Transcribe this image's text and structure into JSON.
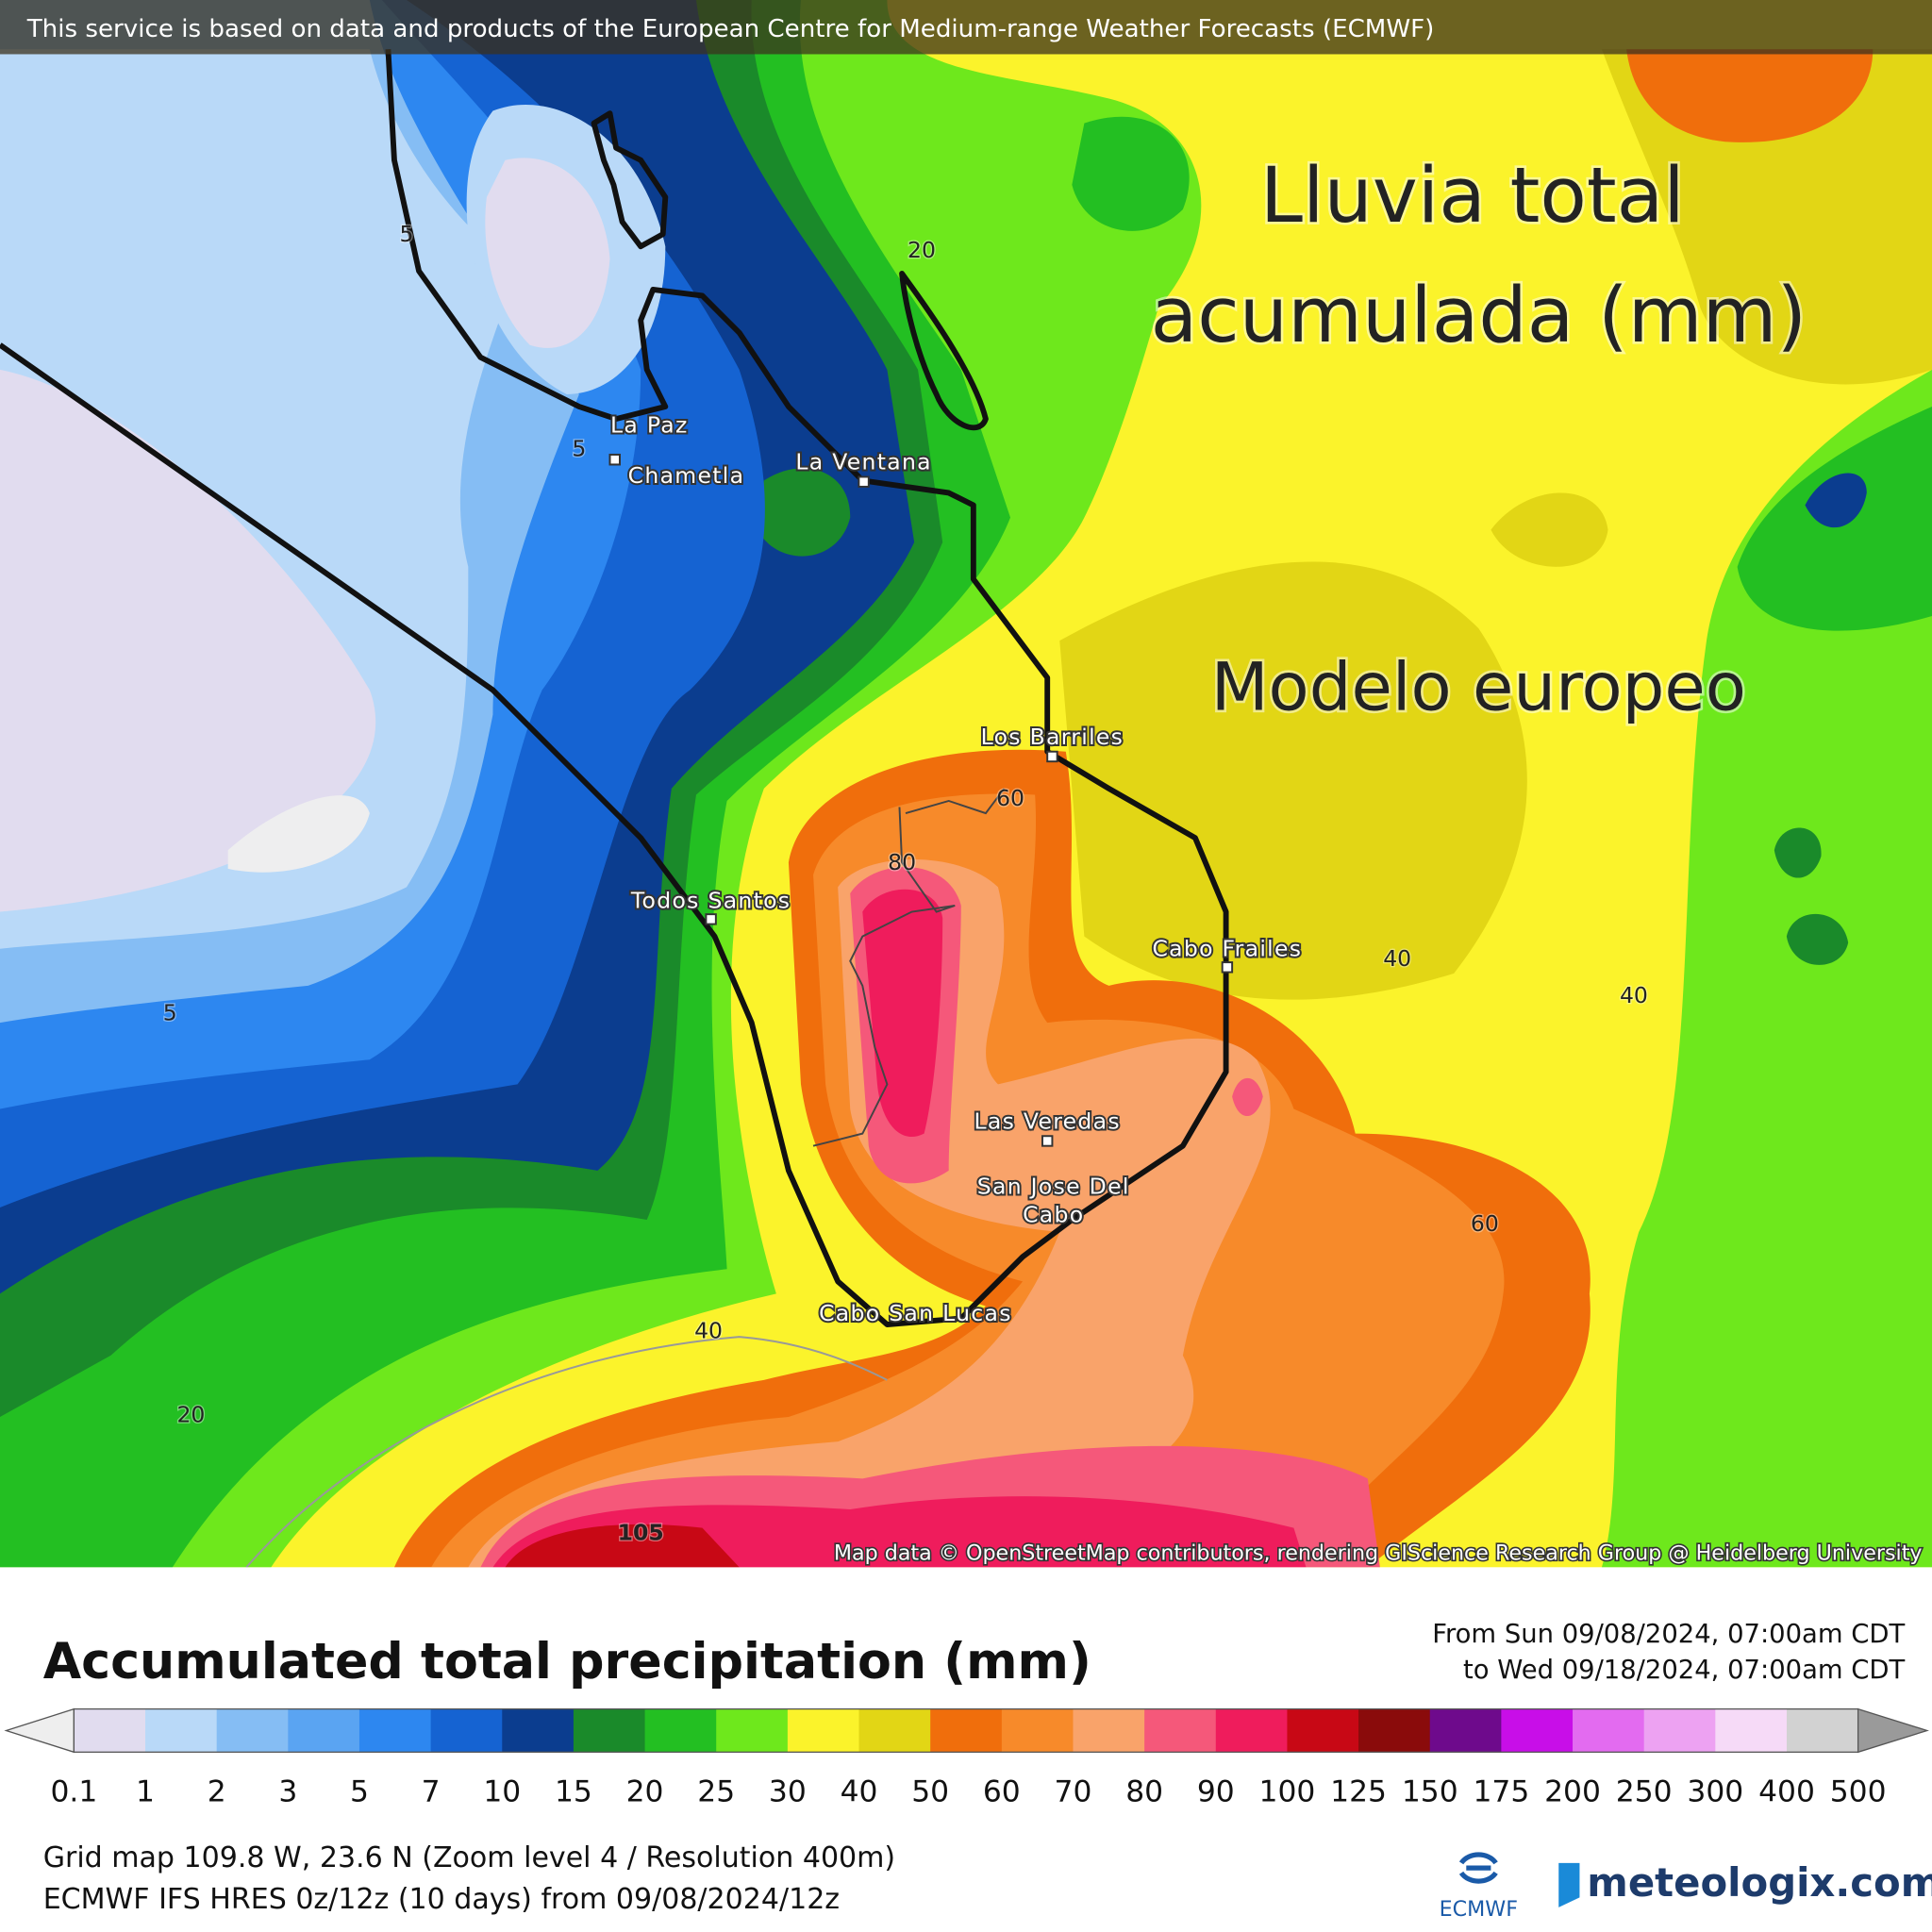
{
  "header": {
    "notice": "This service is based on data and products of the European Centre for Medium-range Weather Forecasts (ECMWF)"
  },
  "map": {
    "overlay_title": [
      "Lluvia total",
      "acumulada (mm)"
    ],
    "overlay_subtitle": "Modelo europeo",
    "places": [
      "La Paz",
      "Chametla",
      "La Ventana",
      "Los Barriles",
      "Todos Santos",
      "Cabo Frailes",
      "Las Veredas",
      "Cabo San Lucas"
    ],
    "place_multiline": [
      "San Jose Del",
      "Cabo"
    ],
    "contour_labels": [
      "5",
      "5",
      "5",
      "20",
      "20",
      "40",
      "40",
      "40",
      "60",
      "60",
      "80",
      "105"
    ],
    "attribution": "Map data © OpenStreetMap contributors, rendering GIScience Research Group @ Heidelberg University"
  },
  "footer": {
    "title": "Accumulated total precipitation (mm)",
    "period": [
      "From Sun 09/08/2024, 07:00am CDT",
      "to Wed 09/18/2024, 07:00am CDT"
    ],
    "grid_info": "Grid map 109.8 W, 23.6 N (Zoom level 4 / Resolution 400m)",
    "model_info": "ECMWF IFS HRES 0z/12z (10 days) from  09/08/2024/12z",
    "ecmwf_logo": "ECMWF",
    "site_logo": "meteologix.com"
  },
  "legend": {
    "labels": [
      "0.1",
      "1",
      "2",
      "3",
      "5",
      "7",
      "10",
      "15",
      "20",
      "25",
      "30",
      "40",
      "50",
      "60",
      "70",
      "80",
      "90",
      "100",
      "125",
      "150",
      "175",
      "200",
      "250",
      "300",
      "400",
      "500"
    ],
    "colors": [
      "#e1dcef",
      "#b9d9f8",
      "#85bdf4",
      "#5aa4f2",
      "#2d87f0",
      "#1563d2",
      "#0b3d8f",
      "#1a8a2a",
      "#23bf22",
      "#6ee81c",
      "#fbf32b",
      "#e2d615",
      "#f06e0c",
      "#f78a2a",
      "#f9a36a",
      "#f5587a",
      "#ef1c5c",
      "#c80815",
      "#8a0b0b",
      "#6e0a8c",
      "#c80ee8",
      "#e36bf0",
      "#eda2f2",
      "#f6daf7",
      "#d2d2d2"
    ],
    "under_color": "#eeeeee",
    "over_color": "#9a9a9a"
  }
}
